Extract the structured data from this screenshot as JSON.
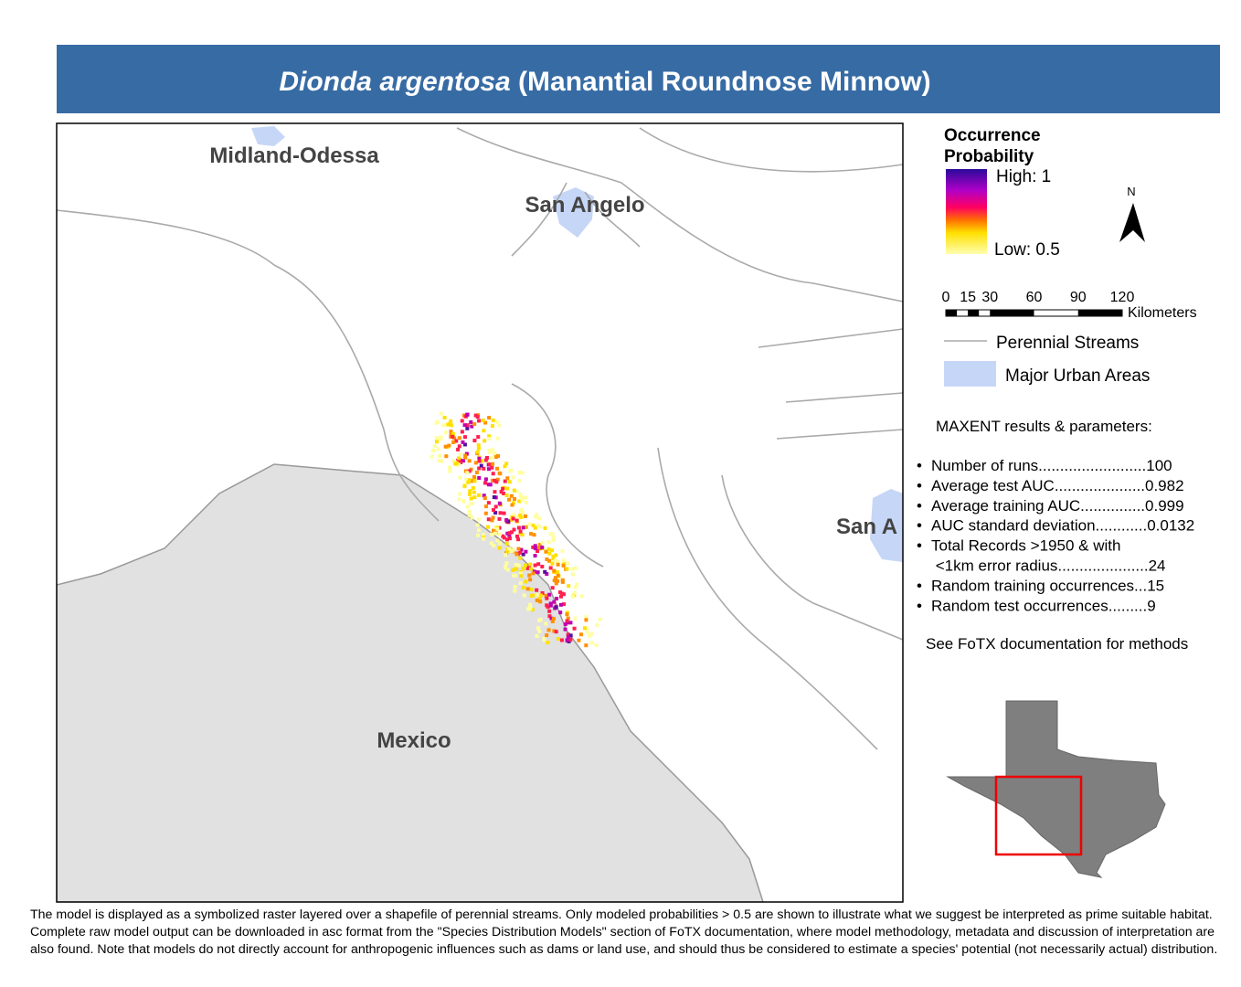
{
  "header": {
    "title_italic": "Dionda argentosa",
    "title_rest": " (Manantial Roundnose Minnow)"
  },
  "map": {
    "labels": [
      "Midland-Odessa",
      "San Angelo",
      "San A",
      "Mexico"
    ]
  },
  "legend": {
    "title": [
      "Occurrence",
      "Probability"
    ],
    "high": "High: 1",
    "low": "Low: 0.5",
    "north": "N",
    "scale_labels": [
      "0",
      "15",
      "30",
      "60",
      "90",
      "120"
    ],
    "scale_unit": "Kilometers",
    "streams": "Perennial Streams",
    "urban": "Major Urban Areas"
  },
  "results": {
    "heading": "MAXENT results & parameters:",
    "items": [
      "Number of runs.........................100",
      "Average test AUC.....................0.982",
      "Average training AUC...............0.999",
      "AUC standard deviation............0.0132",
      "Total Records >1950 & with",
      " <1km error radius.....................24",
      "Random training occurrences...15",
      "Random test occurrences.........9"
    ],
    "note": "See FoTX documentation for methods"
  },
  "footer": "The model is displayed as a symbolized raster layered over a shapefile of perennial streams. Only modeled probabilities > 0.5 are shown to illustrate what we suggest be interpreted as prime suitable habitat. Complete raw model output can be downloaded in asc format from the \"Species Distribution Models\" section of FoTX documentation, where model methodology, metadata and discussion of interpretation are also found. Note that models do not directly account for anthropogenic influences such as dams or land use, and should thus be considered to estimate a species' potential (not necessarily actual) distribution."
}
